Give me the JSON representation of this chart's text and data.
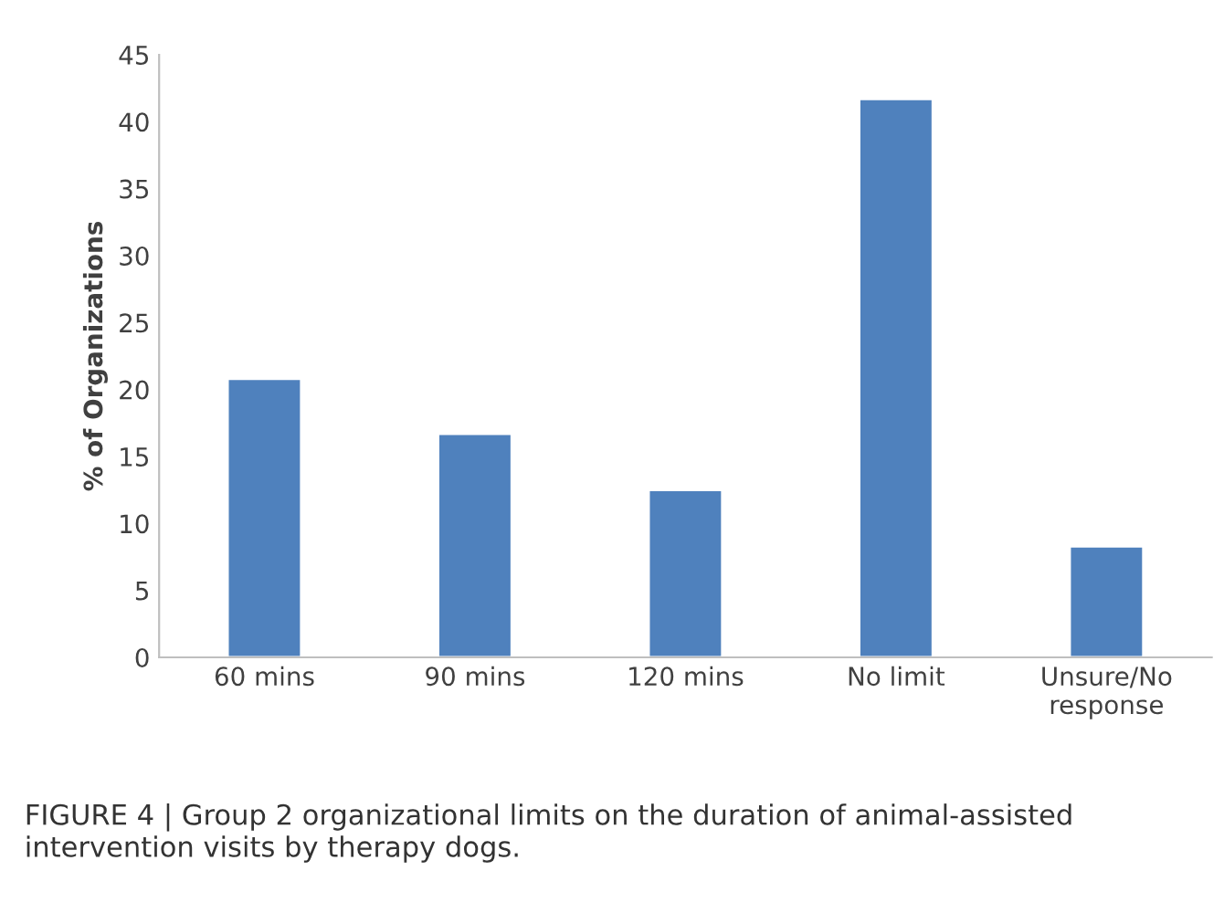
{
  "chart_data": {
    "type": "bar",
    "ylabel": "% of Organizations",
    "categories": [
      "60 mins",
      "90 mins",
      "120 mins",
      "No limit",
      "Unsure/No\nresponse"
    ],
    "values": [
      20.8,
      16.7,
      12.5,
      41.7,
      8.3
    ],
    "color": "#4f81bd",
    "ylim": [
      0,
      45
    ],
    "yticks": [
      0,
      5,
      10,
      15,
      20,
      25,
      30,
      35,
      40,
      45
    ],
    "grid": false,
    "annotations": [
      "FIGURE 4 | Group 2 organizational limits on the duration of animal-assisted intervention visits by therapy dogs."
    ]
  }
}
